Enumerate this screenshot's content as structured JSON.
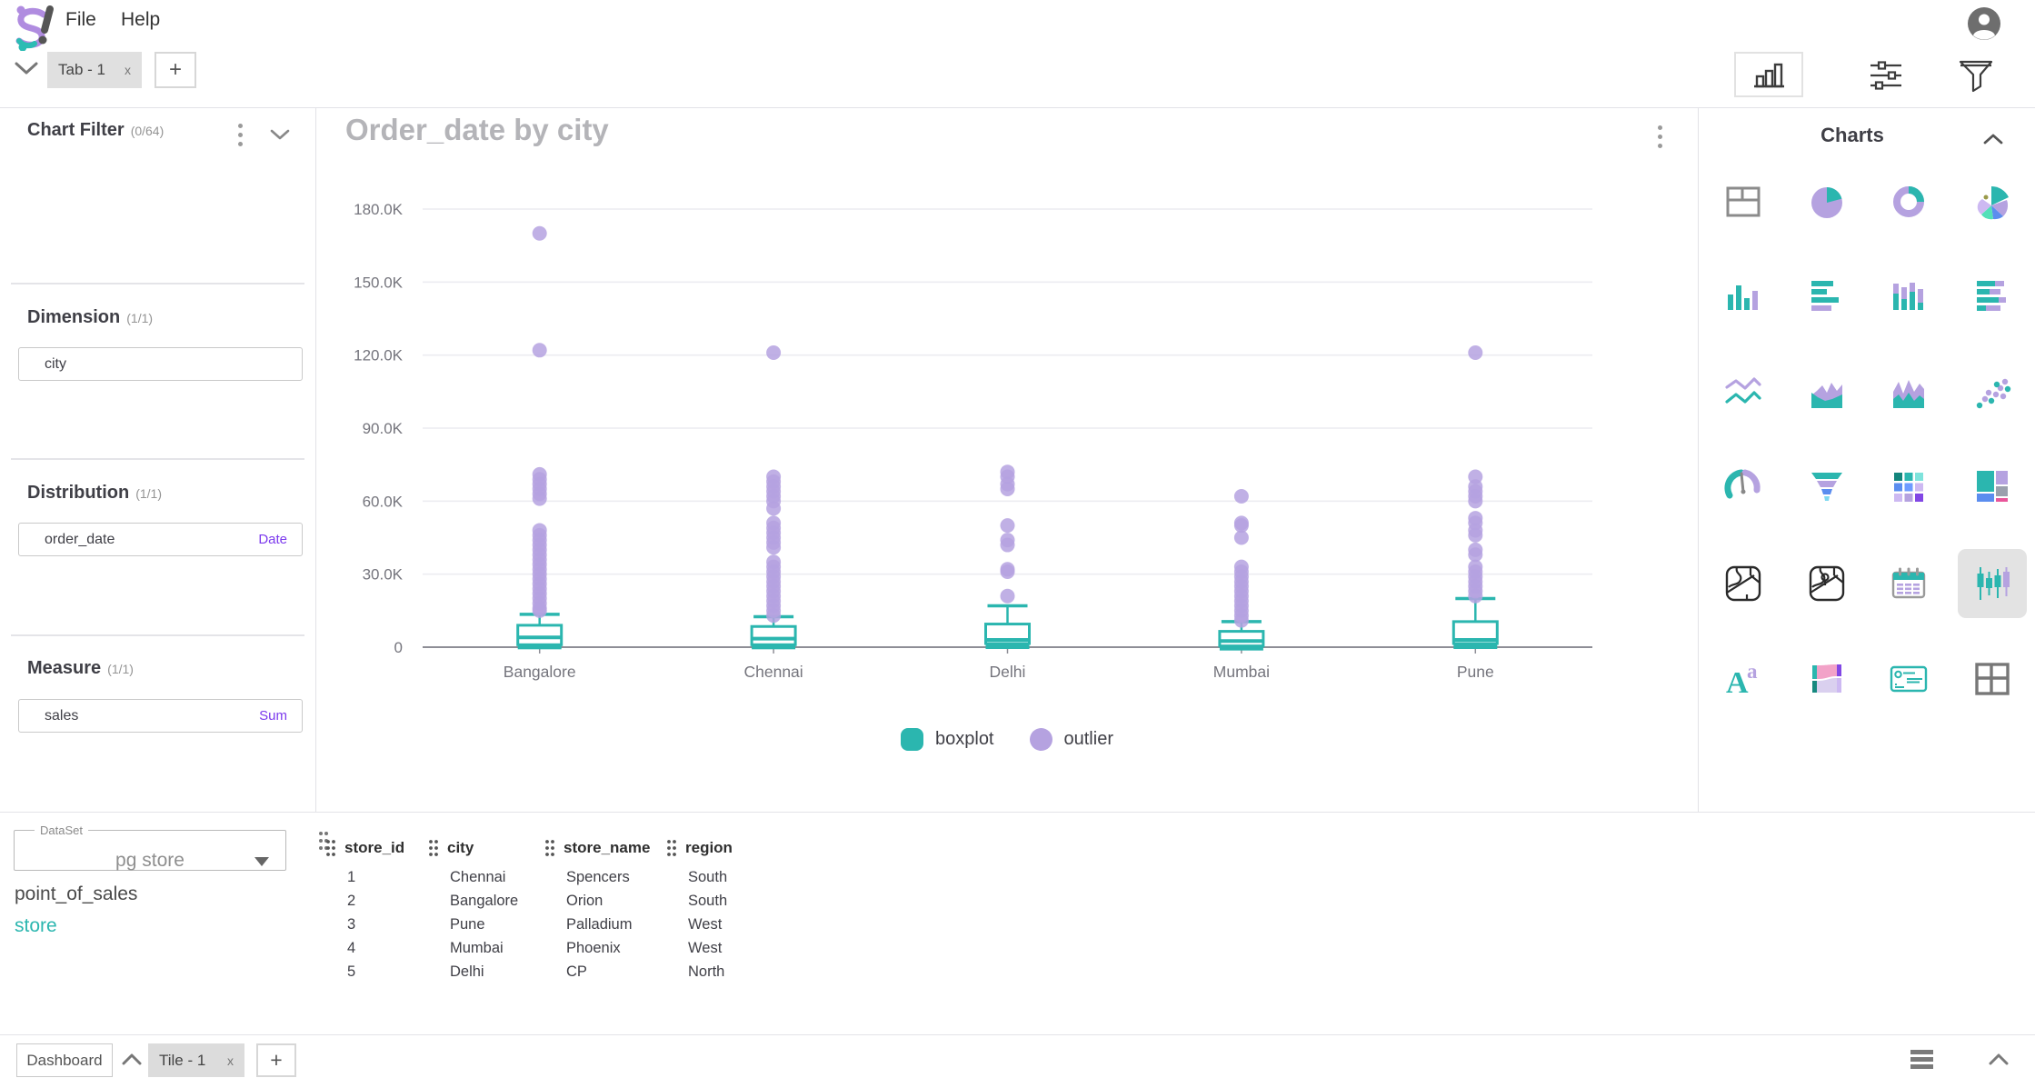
{
  "header": {
    "menu": [
      {
        "label": "File"
      },
      {
        "label": "Help"
      }
    ],
    "logo_name": "app-logo",
    "avatar_name": "user-avatar"
  },
  "tab_bar": {
    "tabs": [
      {
        "label": "Tab - 1",
        "close_label": "x"
      }
    ],
    "add_label": "+"
  },
  "toolbar": {
    "icons": [
      "chart-view",
      "settings-sliders",
      "filter-funnel"
    ],
    "selected": "chart-view"
  },
  "left_panel": {
    "chart_filter": {
      "title": "Chart Filter",
      "count": "(0/64)"
    },
    "sections": [
      {
        "title": "Dimension",
        "count": "(1/1)",
        "items": [
          {
            "name": "city",
            "tag": ""
          }
        ]
      },
      {
        "title": "Distribution",
        "count": "(1/1)",
        "items": [
          {
            "name": "order_date",
            "tag": "Date"
          }
        ]
      },
      {
        "title": "Measure",
        "count": "(1/1)",
        "items": [
          {
            "name": "sales",
            "tag": "Sum"
          }
        ]
      }
    ]
  },
  "chart_panel": {
    "title": "Order_date by city"
  },
  "chart_data": {
    "type": "boxplot",
    "title": "Order_date by city",
    "categories": [
      "Bangalore",
      "Chennai",
      "Delhi",
      "Mumbai",
      "Pune"
    ],
    "ylim": [
      0,
      180000
    ],
    "ytick_step": 30000,
    "yticks": [
      "0",
      "30.0K",
      "60.0K",
      "90.0K",
      "120.0K",
      "150.0K",
      "180.0K"
    ],
    "grid": true,
    "legend_position": "bottom",
    "legend": [
      {
        "label": "boxplot",
        "color": "#2BB6AF",
        "shape": "square"
      },
      {
        "label": "outlier",
        "color": "#B5A2E0",
        "shape": "circle"
      }
    ],
    "series": [
      {
        "category": "Bangalore",
        "box": {
          "low": 0,
          "q1": 1000,
          "median": 4000,
          "q3": 9000,
          "high": 13500
        },
        "outliers": [
          170000,
          122000,
          71000,
          69000,
          67000,
          65000,
          63000,
          61000,
          48000,
          46000,
          44000,
          42000,
          40000,
          38000,
          36000,
          34000,
          32000,
          30000,
          28000,
          26000,
          24000,
          22000,
          20000,
          18000,
          16000,
          15000
        ]
      },
      {
        "category": "Chennai",
        "box": {
          "low": 0,
          "q1": 1000,
          "median": 3500,
          "q3": 8500,
          "high": 12500
        },
        "outliers": [
          121000,
          70000,
          68000,
          66000,
          64000,
          62000,
          60000,
          57000,
          51000,
          49000,
          47000,
          45000,
          43000,
          41000,
          35000,
          33000,
          31000,
          29000,
          27000,
          25000,
          23000,
          21000,
          19000,
          17000,
          15000,
          13000
        ]
      },
      {
        "category": "Delhi",
        "box": {
          "low": 0,
          "q1": 1500,
          "median": 3000,
          "q3": 9500,
          "high": 17000
        },
        "outliers": [
          72000,
          70000,
          67000,
          65000,
          50000,
          44000,
          42000,
          32000,
          31000,
          21000
        ]
      },
      {
        "category": "Mumbai",
        "box": {
          "low": 0,
          "q1": 500,
          "median": 2500,
          "q3": 6500,
          "high": 10500
        },
        "outliers": [
          62000,
          51000,
          50000,
          45000,
          33000,
          31000,
          29000,
          27000,
          25000,
          23000,
          21000,
          19000,
          17000,
          15000,
          13000,
          11000
        ]
      },
      {
        "category": "Pune",
        "box": {
          "low": 0,
          "q1": 1500,
          "median": 3000,
          "q3": 10500,
          "high": 20000
        },
        "outliers": [
          121000,
          70000,
          66000,
          64000,
          62000,
          60000,
          53000,
          51000,
          48000,
          46000,
          40000,
          38000,
          33000,
          31000,
          29000,
          27000,
          25000,
          23000,
          21000
        ]
      }
    ]
  },
  "charts_panel": {
    "title": "Charts",
    "icons": [
      {
        "name": "data-table"
      },
      {
        "name": "pie-chart"
      },
      {
        "name": "donut-chart"
      },
      {
        "name": "rose-chart"
      },
      {
        "name": "bar-chart"
      },
      {
        "name": "hbar-chart"
      },
      {
        "name": "stacked-bar-chart"
      },
      {
        "name": "stacked-hbar-chart"
      },
      {
        "name": "line-chart"
      },
      {
        "name": "area-chart"
      },
      {
        "name": "stacked-area-chart"
      },
      {
        "name": "scatter-plot"
      },
      {
        "name": "gauge-chart"
      },
      {
        "name": "funnel-chart"
      },
      {
        "name": "heatmap"
      },
      {
        "name": "treemap"
      },
      {
        "name": "map-chart"
      },
      {
        "name": "bubble-map"
      },
      {
        "name": "calendar-heatmap"
      },
      {
        "name": "boxplot",
        "selected": true
      },
      {
        "name": "word-cloud"
      },
      {
        "name": "sankey-chart"
      },
      {
        "name": "kpi-card"
      },
      {
        "name": "pivot-table"
      }
    ]
  },
  "dataset_panel": {
    "label": "DataSet",
    "value": "pg store",
    "tables": [
      {
        "name": "point_of_sales",
        "active": false
      },
      {
        "name": "store",
        "active": true
      }
    ]
  },
  "data_table": {
    "columns": [
      "store_id",
      "city",
      "store_name",
      "region"
    ],
    "rows": [
      [
        "1",
        "Chennai",
        "Spencers",
        "South"
      ],
      [
        "2",
        "Bangalore",
        "Orion",
        "South"
      ],
      [
        "3",
        "Pune",
        "Palladium",
        "West"
      ],
      [
        "4",
        "Mumbai",
        "Phoenix",
        "West"
      ],
      [
        "5",
        "Delhi",
        "CP",
        "North"
      ]
    ]
  },
  "bottom_bar": {
    "dashboard_label": "Dashboard",
    "tiles": [
      {
        "label": "Tile - 1",
        "close_label": "x"
      }
    ],
    "add_label": "+"
  },
  "colors": {
    "teal": "#2BB6AF",
    "outlier_purple": "#B5A2E0",
    "accent_purple": "#7C3AED",
    "grid_line": "#ececf1",
    "axis_line": "#8e8e96",
    "muted_text": "#75757d",
    "title_gray": "#b4b4b8",
    "selected_bg": "#e3e3e3"
  }
}
